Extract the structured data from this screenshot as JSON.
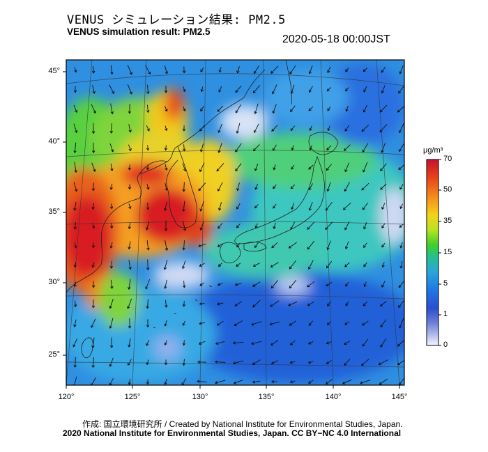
{
  "title_jp": "VENUS シミュレーション結果: PM2.5",
  "title_en": "VENUS simulation result: PM2.5",
  "timestamp": "2020-05-18 00:00JST",
  "map": {
    "lat_labels": [
      "45°",
      "40°",
      "35°",
      "30°",
      "25°"
    ],
    "lon_labels": [
      "120°",
      "125°",
      "130°",
      "135°",
      "140°",
      "145°"
    ]
  },
  "colorbar": {
    "unit": "μg/m³",
    "ticks": [
      "70",
      "50",
      "35",
      "15",
      "5",
      "1",
      "0"
    ],
    "colors": [
      "#c8102e",
      "#e8451a",
      "#f59a1a",
      "#f2d41a",
      "#b8e21f",
      "#3fcf2a",
      "#22c28a",
      "#2aa8d8",
      "#1f78e6",
      "#2a4fd0",
      "#6f7fd6",
      "#b9c3ee",
      "#f4f6ff"
    ]
  },
  "credit_line1": "作成: 国立環境研究所 / Created by National Institute for Environmental Studies, Japan.",
  "credit_line2": "2020 National Institute for Environmental Studies, Japan. CC BY−NC 4.0 International"
}
